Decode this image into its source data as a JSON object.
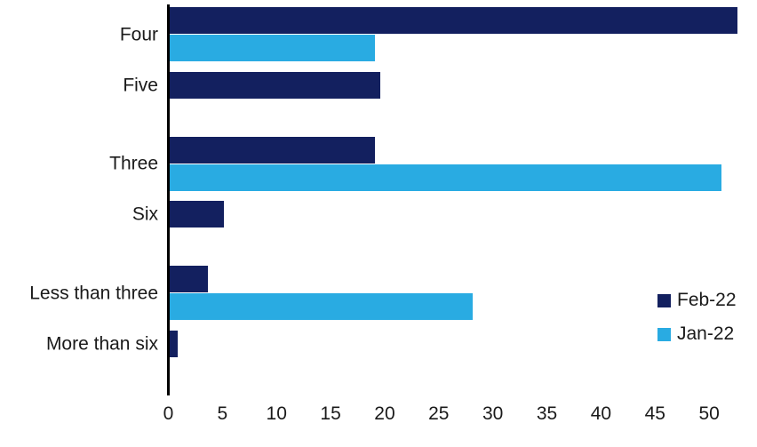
{
  "chart_data": {
    "type": "bar",
    "orientation": "horizontal",
    "title": "",
    "xlabel": "",
    "ylabel": "",
    "categories": [
      "Four",
      "Five",
      "Three",
      "Six",
      "Less than three",
      "More than six"
    ],
    "series": [
      {
        "name": "Feb-22",
        "color": "#13205f",
        "values": [
          52.5,
          19.5,
          19,
          5,
          3.5,
          0.7
        ]
      },
      {
        "name": "Jan-22",
        "color": "#29abe2",
        "values": [
          19,
          0,
          51,
          0,
          28,
          0
        ]
      }
    ],
    "xticks": [
      0,
      5,
      10,
      15,
      20,
      25,
      30,
      35,
      40,
      45,
      50
    ],
    "xlim": [
      0,
      54.3
    ],
    "grid": false,
    "legend_position": "right",
    "axis_color": "#000000",
    "text_color": "#1a1a1a"
  }
}
